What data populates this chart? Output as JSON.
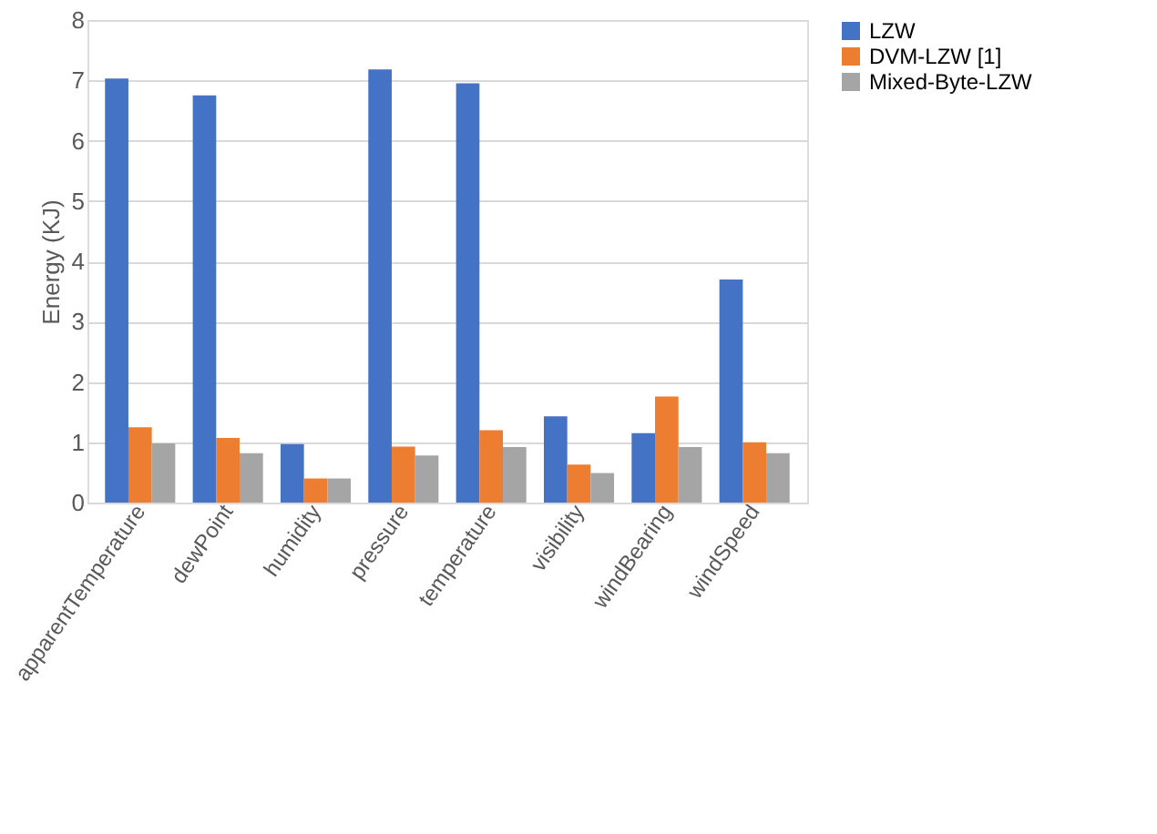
{
  "chart_data": {
    "type": "bar",
    "ylabel": "Energy (KJ)",
    "categories": [
      "apparentTemperature",
      "dewPoint",
      "humidity",
      "pressure",
      "temperature",
      "visibility",
      "windBearing",
      "windSpeed"
    ],
    "series": [
      {
        "name": "LZW",
        "color": "#4472c4",
        "values": [
          7.03,
          6.75,
          0.97,
          7.18,
          6.95,
          1.43,
          1.15,
          3.7
        ]
      },
      {
        "name": "DVM-LZW [1]",
        "color": "#ed7d31",
        "values": [
          1.25,
          1.07,
          0.4,
          0.93,
          1.2,
          0.63,
          1.76,
          1.0
        ]
      },
      {
        "name": "Mixed-Byte-LZW",
        "color": "#a5a5a5",
        "values": [
          0.98,
          0.82,
          0.4,
          0.78,
          0.92,
          0.49,
          0.92,
          0.82
        ]
      }
    ],
    "ylim": [
      0,
      8
    ],
    "yticks": [
      0,
      1,
      2,
      3,
      4,
      5,
      6,
      7,
      8
    ],
    "grid": "y",
    "legend": "right"
  }
}
